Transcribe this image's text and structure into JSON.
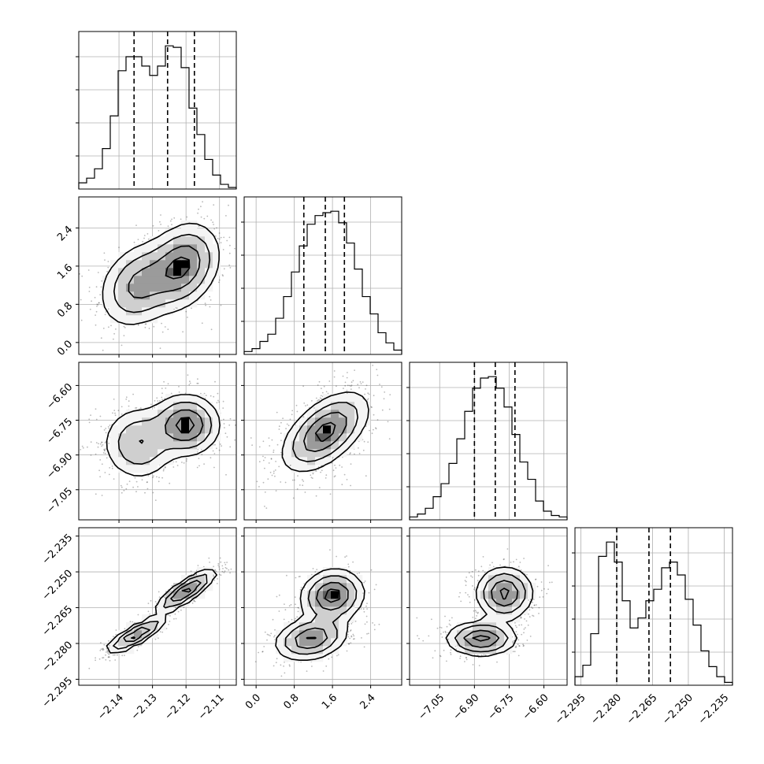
{
  "chart_data": {
    "type": "corner",
    "title": "",
    "grid": true,
    "parameters": [
      {
        "range": [
          -2.152,
          -2.105
        ],
        "ticks": [
          -2.14,
          -2.13,
          -2.12,
          -2.11
        ],
        "tick_labels": [
          "−2.14",
          "−2.13",
          "−2.12",
          "−2.11"
        ],
        "quantiles": [
          -2.1355,
          -2.1255,
          -2.1175
        ]
      },
      {
        "range": [
          -0.25,
          3.05
        ],
        "ticks": [
          0.0,
          0.8,
          1.6,
          2.4
        ],
        "tick_labels": [
          "0.0",
          "0.8",
          "1.6",
          "2.4"
        ],
        "quantiles": [
          1.0,
          1.45,
          1.85
        ]
      },
      {
        "range": [
          -7.18,
          -6.5
        ],
        "ticks": [
          -7.05,
          -6.9,
          -6.75,
          -6.6
        ],
        "tick_labels": [
          "−7.05",
          "−6.90",
          "−6.75",
          "−6.60"
        ],
        "quantiles": [
          -6.9,
          -6.81,
          -6.725
        ]
      },
      {
        "range": [
          -2.2975,
          -2.2315
        ],
        "ticks": [
          -2.295,
          -2.28,
          -2.265,
          -2.25,
          -2.235
        ],
        "tick_labels": [
          "−2.295",
          "−2.280",
          "−2.265",
          "−2.250",
          "−2.235"
        ],
        "quantiles": [
          -2.28,
          -2.2665,
          -2.2575
        ]
      }
    ],
    "histograms": [
      {
        "bins": 20,
        "counts": [
          4,
          7,
          13,
          26,
          47,
          76,
          85,
          85,
          79,
          73,
          79,
          92,
          91,
          78,
          52,
          35,
          19,
          9,
          3,
          1
        ]
      },
      {
        "bins": 20,
        "counts": [
          2,
          4,
          9,
          14,
          25,
          40,
          57,
          75,
          90,
          96,
          98,
          99,
          91,
          77,
          59,
          40,
          28,
          15,
          8,
          3
        ]
      },
      {
        "bins": 20,
        "counts": [
          2,
          4,
          8,
          16,
          25,
          39,
          56,
          75,
          91,
          98,
          99,
          91,
          78,
          59,
          40,
          28,
          13,
          6,
          3,
          2
        ]
      },
      {
        "bins": 20,
        "counts": [
          6,
          14,
          36,
          90,
          100,
          86,
          59,
          40,
          47,
          59,
          67,
          82,
          86,
          77,
          60,
          42,
          24,
          13,
          6,
          2
        ]
      }
    ],
    "pairs": [
      {
        "x": 0,
        "y": 1,
        "modes": [
          {
            "cx": -2.134,
            "cy": 1.2,
            "sx": 0.006,
            "sy": 0.45,
            "rho": 0.25,
            "w": 0.45
          },
          {
            "cx": -2.121,
            "cy": 1.6,
            "sx": 0.0055,
            "sy": 0.45,
            "rho": 0.25,
            "w": 0.55
          }
        ]
      },
      {
        "x": 0,
        "y": 2,
        "modes": [
          {
            "cx": -2.134,
            "cy": -6.85,
            "sx": 0.0055,
            "sy": 0.08,
            "rho": 0.0,
            "w": 0.45
          },
          {
            "cx": -2.12,
            "cy": -6.77,
            "sx": 0.005,
            "sy": 0.065,
            "rho": 0.0,
            "w": 0.55
          }
        ]
      },
      {
        "x": 0,
        "y": 3,
        "modes": [
          {
            "cx": -2.135,
            "cy": -2.2765,
            "sx": 0.0045,
            "sy": 0.0038,
            "rho": 0.85,
            "w": 0.45
          },
          {
            "cx": -2.12,
            "cy": -2.258,
            "sx": 0.0045,
            "sy": 0.0045,
            "rho": 0.85,
            "w": 0.55
          }
        ]
      },
      {
        "x": 1,
        "y": 2,
        "modes": [
          {
            "cx": 1.45,
            "cy": -6.8,
            "sx": 0.45,
            "sy": 0.085,
            "rho": 0.55,
            "w": 1.0
          }
        ]
      },
      {
        "x": 1,
        "y": 3,
        "modes": [
          {
            "cx": 1.15,
            "cy": -2.278,
            "sx": 0.38,
            "sy": 0.0045,
            "rho": 0.25,
            "w": 0.45
          },
          {
            "cx": 1.6,
            "cy": -2.26,
            "sx": 0.33,
            "sy": 0.0055,
            "rho": 0.1,
            "w": 0.55
          }
        ]
      },
      {
        "x": 2,
        "y": 3,
        "modes": [
          {
            "cx": -6.87,
            "cy": -2.278,
            "sx": 0.075,
            "sy": 0.0035,
            "rho": 0.0,
            "w": 0.45
          },
          {
            "cx": -6.77,
            "cy": -2.259,
            "sx": 0.06,
            "sy": 0.0055,
            "rho": 0.0,
            "w": 0.55
          }
        ]
      }
    ],
    "contour_levels_sigma": [
      0.5,
      1.0,
      1.5,
      2.0
    ]
  }
}
